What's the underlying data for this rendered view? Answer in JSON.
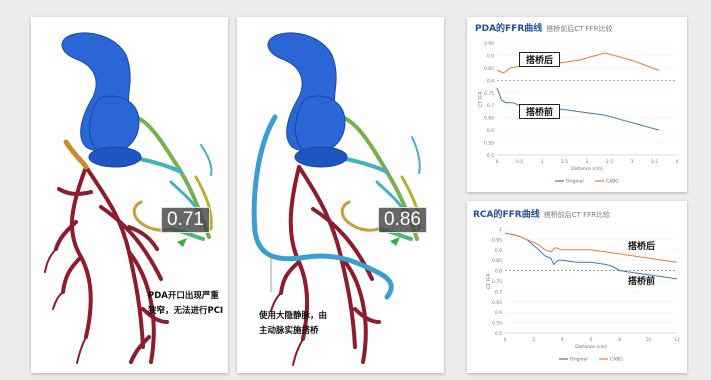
{
  "left_panel": {
    "ffr_value": "0.71",
    "note_line1": "PDA开口出现严重",
    "note_line2": "狭窄，无法进行PCI"
  },
  "middle_panel": {
    "ffr_value": "0.86",
    "note_line1": "使用大隐静脉，由",
    "note_line2": "主动脉实施搭桥"
  },
  "colors": {
    "vessel_blue": "#2a66d6",
    "vessel_red": "#8c1c2e",
    "original_line": "#4472c4",
    "cabg_line": "#ed7d31",
    "title_blue": "#1f4e9c"
  },
  "chart_data": [
    {
      "type": "line",
      "title": "PDA的FFR曲线",
      "subtitle": "搭桥前后CT FFR比较",
      "xlabel": "Distance (cm)",
      "ylabel": "CT FFR",
      "xlim": [
        0,
        4
      ],
      "ylim": [
        0.5,
        0.95
      ],
      "xticks": [
        "0",
        "0.5",
        "1",
        "1.5",
        "2",
        "2.5",
        "3",
        "3.5",
        "4"
      ],
      "yticks": [
        "0.5",
        "0.55",
        "0.6",
        "0.65",
        "0.7",
        "0.75",
        "0.8",
        "0.85",
        "0.9",
        "0.95"
      ],
      "reference_line": 0.8,
      "annotations": [
        "搭桥后",
        "搭桥前"
      ],
      "series": [
        {
          "name": "Original",
          "color": "#4472c4",
          "x": [
            0,
            0.1,
            0.2,
            0.35,
            0.5,
            0.8,
            1.2,
            1.6,
            2.0,
            2.4,
            2.8,
            3.2,
            3.6
          ],
          "y": [
            0.77,
            0.72,
            0.71,
            0.71,
            0.7,
            0.7,
            0.69,
            0.68,
            0.67,
            0.66,
            0.64,
            0.62,
            0.6
          ]
        },
        {
          "name": "CABG",
          "color": "#ed7d31",
          "x": [
            0,
            0.15,
            0.3,
            0.6,
            1.0,
            1.4,
            1.8,
            2.2,
            2.4,
            2.6,
            3.0,
            3.3,
            3.6
          ],
          "y": [
            0.84,
            0.83,
            0.85,
            0.86,
            0.86,
            0.87,
            0.88,
            0.9,
            0.91,
            0.9,
            0.88,
            0.86,
            0.84
          ]
        }
      ],
      "legend": "bottom"
    },
    {
      "type": "line",
      "title": "RCA的FFR曲线",
      "subtitle": "搭桥前后CT FFR比较",
      "xlabel": "Distance (cm)",
      "ylabel": "CT FFR",
      "xlim": [
        0,
        12
      ],
      "ylim": [
        0.5,
        1.0
      ],
      "xticks": [
        "0",
        "2",
        "4",
        "6",
        "8",
        "10",
        "12"
      ],
      "yticks": [
        "0.5",
        "0.55",
        "0.6",
        "0.65",
        "0.7",
        "0.75",
        "0.8",
        "0.85",
        "0.9",
        "0.95",
        "1"
      ],
      "reference_line": 0.8,
      "annotations": [
        "搭桥后",
        "搭桥前"
      ],
      "series": [
        {
          "name": "Original",
          "color": "#4472c4",
          "x": [
            0,
            0.8,
            1.5,
            2.2,
            2.8,
            3.2,
            3.4,
            3.7,
            4.0,
            5.0,
            6.0,
            7.0,
            7.5,
            8.0,
            9.0,
            10.0,
            11.0,
            12.0
          ],
          "y": [
            0.98,
            0.97,
            0.95,
            0.91,
            0.87,
            0.86,
            0.83,
            0.85,
            0.85,
            0.84,
            0.84,
            0.83,
            0.82,
            0.8,
            0.79,
            0.78,
            0.77,
            0.76
          ]
        },
        {
          "name": "CABG",
          "color": "#ed7d31",
          "x": [
            0,
            0.8,
            1.5,
            2.2,
            2.8,
            3.2,
            3.5,
            4.0,
            5.0,
            6.0,
            7.0,
            8.0,
            9.0,
            10.0,
            11.0,
            12.0
          ],
          "y": [
            0.98,
            0.97,
            0.95,
            0.93,
            0.9,
            0.89,
            0.91,
            0.9,
            0.9,
            0.9,
            0.89,
            0.88,
            0.87,
            0.86,
            0.85,
            0.84
          ]
        }
      ],
      "legend": "bottom"
    }
  ]
}
